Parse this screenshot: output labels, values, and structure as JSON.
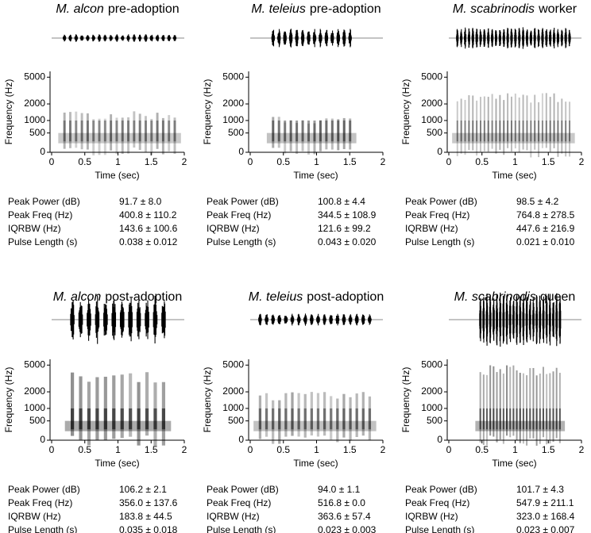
{
  "axes": {
    "xlabel": "Time (sec)",
    "ylabel": "Frequency (Hz)",
    "xlim": [
      0,
      2
    ],
    "xticks": [
      0,
      0.5,
      1,
      1.5,
      2
    ],
    "ylim": [
      0,
      6000
    ],
    "yticks": [
      0,
      500,
      1000,
      2000,
      5000
    ],
    "yscale": "mel"
  },
  "stat_labels": [
    "Peak Power (dB)",
    "Peak Freq (Hz)",
    "IQRBW (Hz)",
    "Pulse Length (s)"
  ],
  "panels": [
    {
      "species": "M. alcon",
      "label": "pre-adoption",
      "stats": [
        "91.7 ± 8.0",
        "400.8 ± 110.2",
        "143.6 ± 100.6",
        "0.038 ± 0.012"
      ]
    },
    {
      "species": "M. teleius",
      "label": "pre-adoption",
      "stats": [
        "100.8 ± 4.4",
        "344.5 ± 108.9",
        "121.6 ± 99.2",
        "0.043 ± 0.020"
      ]
    },
    {
      "species": "M. scabrinodis",
      "label": "worker",
      "stats": [
        "98.5 ± 4.2",
        "764.8 ± 278.5",
        "447.6 ± 216.9",
        "0.021 ± 0.010"
      ]
    },
    {
      "species": "M. alcon",
      "label": "post-adoption",
      "stats": [
        "106.2 ± 2.1",
        "356.0 ± 137.6",
        "183.8 ± 44.5",
        "0.035 ± 0.018"
      ]
    },
    {
      "species": "M. teleius",
      "label": "post-adoption",
      "stats": [
        "94.0 ± 1.1",
        "516.8 ± 0.0",
        "363.6 ± 57.4",
        "0.023 ± 0.003"
      ]
    },
    {
      "species": "M. scabrinodis",
      "label": "queen",
      "stats": [
        "101.7 ± 4.3",
        "547.9 ± 211.1",
        "323.0 ± 168.4",
        "0.023 ± 0.007"
      ]
    }
  ]
}
